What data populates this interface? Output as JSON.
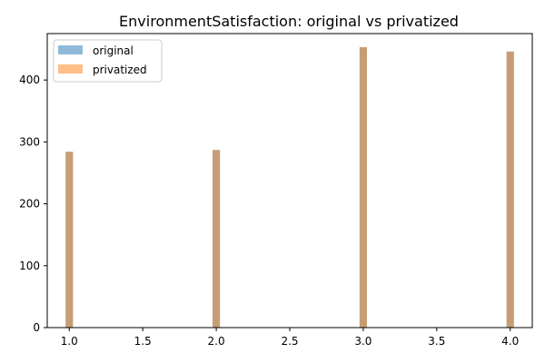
{
  "chart_data": {
    "type": "bar",
    "title": "EnvironmentSatisfaction: original vs privatized",
    "xlabel": "",
    "ylabel": "",
    "x": [
      1.0,
      2.0,
      3.0,
      4.0
    ],
    "series": [
      {
        "name": "original",
        "values": [
          284,
          287,
          453,
          446
        ],
        "color": "#1f77b4",
        "alpha": 0.5
      },
      {
        "name": "privatized",
        "values": [
          284,
          287,
          453,
          446
        ],
        "color": "#ff7f0e",
        "alpha": 0.5
      }
    ],
    "bar_width": 0.1,
    "xlim": [
      0.85,
      4.15
    ],
    "ylim": [
      0,
      475
    ],
    "xticks": [
      "1.0",
      "1.5",
      "2.0",
      "2.5",
      "3.0",
      "3.5",
      "4.0"
    ],
    "xtick_values": [
      1.0,
      1.5,
      2.0,
      2.5,
      3.0,
      3.5,
      4.0
    ],
    "yticks": [
      "0",
      "100",
      "200",
      "300",
      "400"
    ],
    "ytick_values": [
      0,
      100,
      200,
      300,
      400
    ],
    "legend_position": "top-left",
    "grid": false
  }
}
